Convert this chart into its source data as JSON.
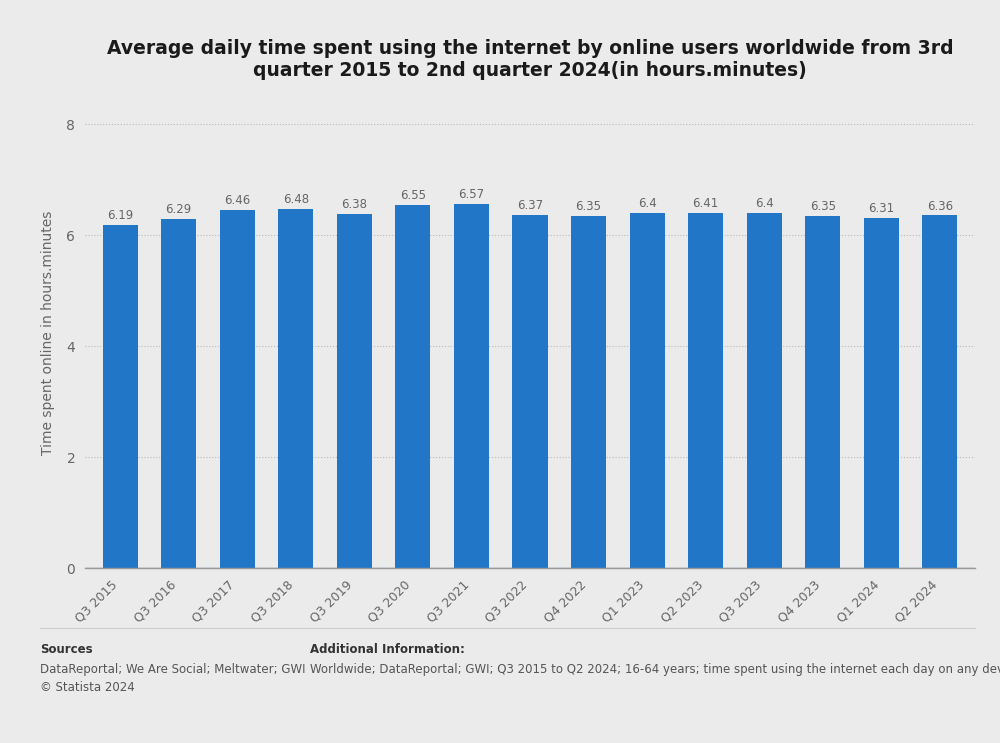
{
  "title": "Average daily time spent using the internet by online users worldwide from 3rd\nquarter 2015 to 2nd quarter 2024(in hours.minutes)",
  "ylabel": "Time spent online in hours.minutes",
  "categories": [
    "Q3 2015",
    "Q3 2016",
    "Q3 2017",
    "Q3 2018",
    "Q3 2019",
    "Q3 2020",
    "Q3 2021",
    "Q3 2022",
    "Q4 2022",
    "Q1 2023",
    "Q2 2023",
    "Q3 2023",
    "Q4 2023",
    "Q1 2024",
    "Q2 2024"
  ],
  "values": [
    6.19,
    6.29,
    6.46,
    6.48,
    6.38,
    6.55,
    6.57,
    6.37,
    6.35,
    6.4,
    6.41,
    6.4,
    6.35,
    6.31,
    6.36
  ],
  "bar_color": "#2176c7",
  "yticks": [
    0,
    2,
    4,
    6,
    8
  ],
  "ylim": [
    0,
    8.5
  ],
  "background_color": "#ebebeb",
  "plot_bg_color": "#ebebeb",
  "title_fontsize": 13.5,
  "label_fontsize": 10,
  "sources_bold": "Sources",
  "sources_body": "DataReportal; We Are Social; Meltwater; GWI\n© Statista 2024",
  "additional_bold": "Additional Information:",
  "additional_body": "Worldwide; DataReportal; GWI; Q3 2015 to Q2 2024; 16-64 years; time spent using the internet each day on any device"
}
